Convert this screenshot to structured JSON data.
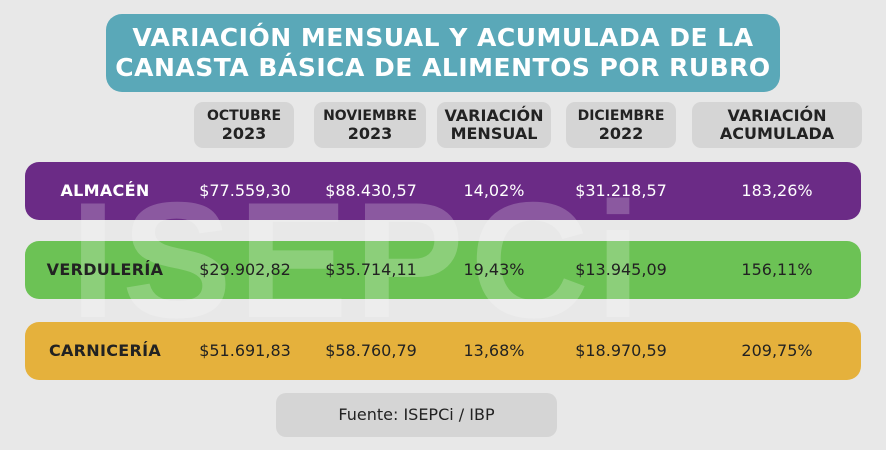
{
  "title": {
    "line1": "VARIACIÓN MENSUAL Y ACUMULADA DE LA",
    "line2": "CANASTA BÁSICA DE ALIMENTOS POR RUBRO"
  },
  "watermark": "ISEPCi",
  "headers": [
    {
      "line1": "OCTUBRE",
      "line2": "2023"
    },
    {
      "line1": "NOVIEMBRE",
      "line2": "2023"
    },
    {
      "line1": "VARIACIÓN",
      "line2": "MENSUAL"
    },
    {
      "line1": "DICIEMBRE",
      "line2": "2022"
    },
    {
      "line1": "VARIACIÓN",
      "line2": "ACUMULADA"
    }
  ],
  "footer": "Fuente: ISEPCi / IBP",
  "colors": {
    "title_bg": "#5aa8b8",
    "almacen": "#6b2b86",
    "verduleria": "#6cc255",
    "carniceria": "#e5b13c"
  },
  "chart_data": {
    "type": "table",
    "columns": [
      "OCTUBRE 2023",
      "NOVIEMBRE 2023",
      "VARIACIÓN MENSUAL",
      "DICIEMBRE 2022",
      "VARIACIÓN ACUMULADA"
    ],
    "rows": [
      {
        "label": "ALMACÉN",
        "cells": [
          "$77.559,30",
          "$88.430,57",
          "14,02%",
          "$31.218,57",
          "183,26%"
        ]
      },
      {
        "label": "VERDULERÍA",
        "cells": [
          "$29.902,82",
          "$35.714,11",
          "19,43%",
          "$13.945,09",
          "156,11%"
        ]
      },
      {
        "label": "CARNICERÍA",
        "cells": [
          "$51.691,83",
          "$58.760,79",
          "13,68%",
          "$18.970,59",
          "209,75%"
        ]
      }
    ]
  }
}
